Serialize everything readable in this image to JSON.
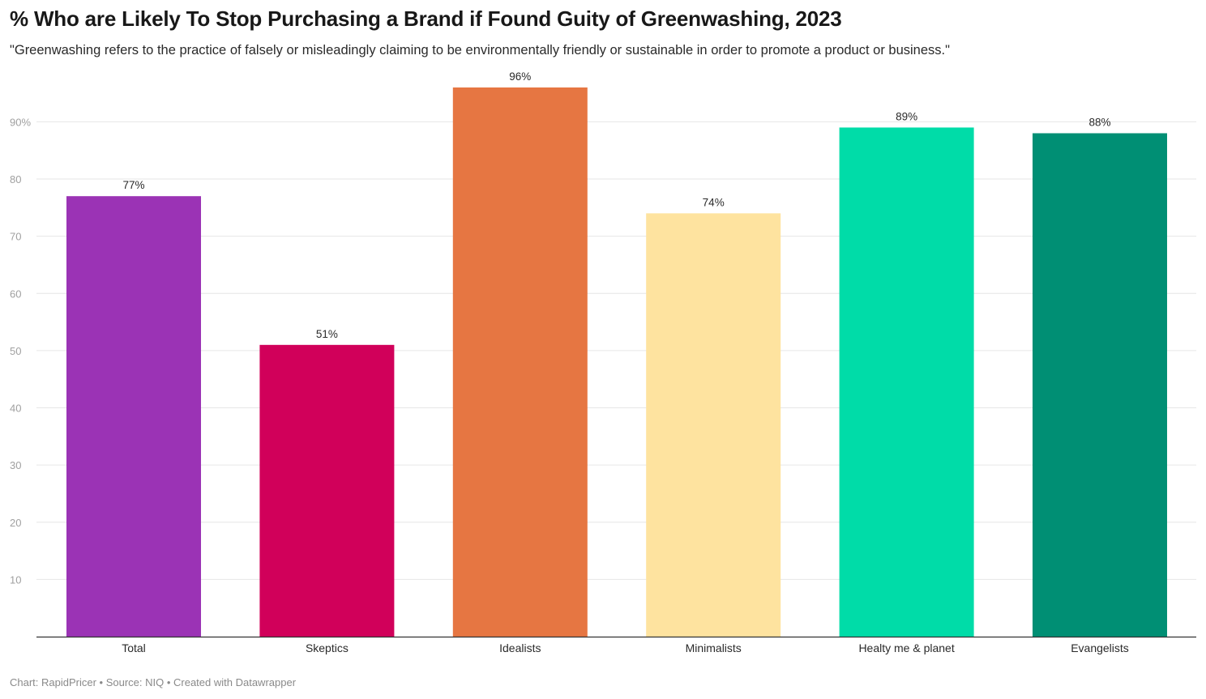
{
  "header": {
    "title": "% Who are Likely To Stop Purchasing a Brand if Found Guity of Greenwashing, 2023",
    "subtitle": "\"Greenwashing refers to the practice of falsely or misleadingly claiming to be environmentally friendly or sustainable in order to promote a product or business.\""
  },
  "footer": {
    "credit": "Chart: RapidPricer • Source: NIQ • Created with Datawrapper"
  },
  "chart_data": {
    "type": "bar",
    "title": "% Who are Likely To Stop Purchasing a Brand if Found Guity of Greenwashing, 2023",
    "xlabel": "",
    "ylabel": "",
    "ylim": [
      0,
      96
    ],
    "yticks": [
      10,
      20,
      30,
      40,
      50,
      60,
      70,
      80,
      90
    ],
    "ytick_labels": [
      "10",
      "20",
      "30",
      "40",
      "50",
      "60",
      "70",
      "80",
      "90%"
    ],
    "grid": true,
    "categories": [
      "Total",
      "Skeptics",
      "Idealists",
      "Minimalists",
      "Healty me & planet",
      "Evangelists"
    ],
    "values": [
      77,
      51,
      96,
      74,
      89,
      88
    ],
    "value_labels": [
      "77%",
      "51%",
      "96%",
      "74%",
      "89%",
      "88%"
    ],
    "colors": [
      "#9b33b5",
      "#d1005a",
      "#e67642",
      "#fee39f",
      "#00dca8",
      "#008f74"
    ]
  }
}
